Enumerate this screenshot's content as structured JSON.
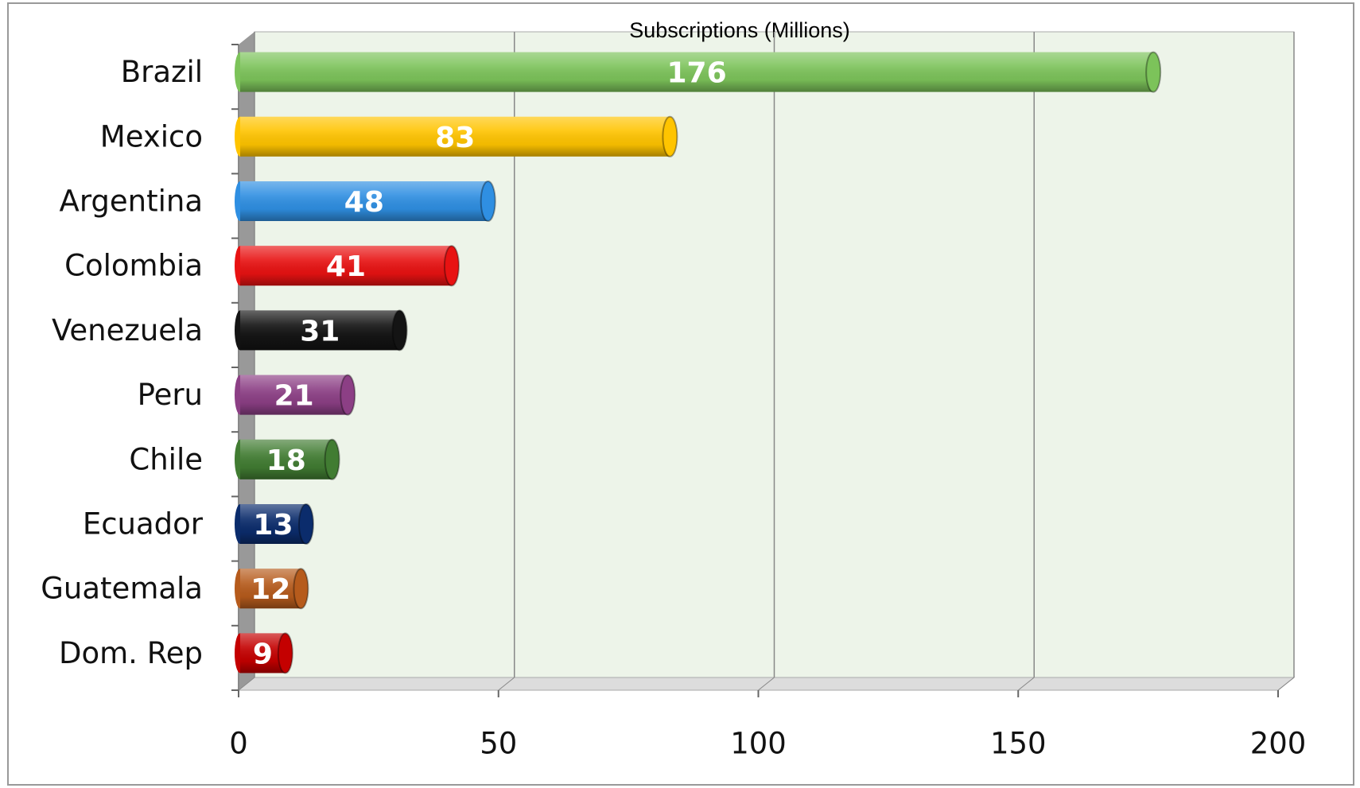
{
  "chart_data": {
    "type": "bar",
    "orientation": "horizontal",
    "title": "Subscriptions (Millions)",
    "categories": [
      "Brazil",
      "Mexico",
      "Argentina",
      "Colombia",
      "Venezuela",
      "Peru",
      "Chile",
      "Ecuador",
      "Guatemala",
      "Dom. Rep"
    ],
    "values": [
      176,
      83,
      48,
      41,
      31,
      21,
      18,
      13,
      12,
      9
    ],
    "colors": [
      "#7cc35a",
      "#ffc400",
      "#2f8fe2",
      "#e81212",
      "#141414",
      "#8c3f85",
      "#417c32",
      "#0b2c6c",
      "#b65b1c",
      "#c40000"
    ],
    "xlim": [
      0,
      200
    ],
    "xticks": [
      0,
      50,
      100,
      150,
      200
    ],
    "grid": true
  }
}
